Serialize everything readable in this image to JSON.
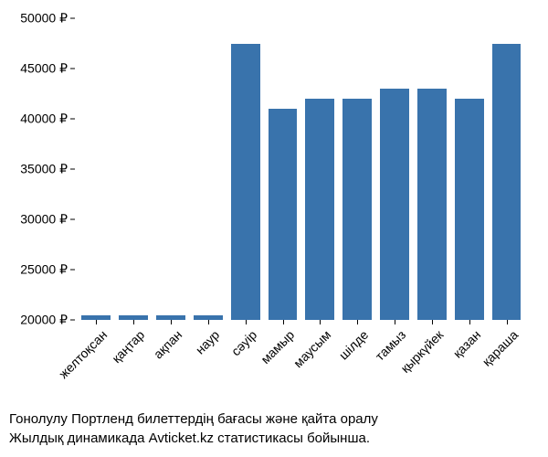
{
  "chart": {
    "type": "bar",
    "categories": [
      "желтоқсан",
      "қаңтар",
      "ақпан",
      "наур",
      "сәуір",
      "мамыр",
      "маусым",
      "шілде",
      "тамыз",
      "қыркүйек",
      "қазан",
      "қараша"
    ],
    "values": [
      20500,
      20500,
      20500,
      20500,
      47500,
      41000,
      42000,
      42000,
      43000,
      43000,
      42000,
      47500
    ],
    "bar_color": "#3973ac",
    "background_color": "#ffffff",
    "ylim": [
      20000,
      50000
    ],
    "ytick_step": 5000,
    "y_ticks": [
      20000,
      25000,
      30000,
      35000,
      40000,
      45000,
      50000
    ],
    "y_tick_labels": [
      "20000 ₽",
      "25000 ₽",
      "30000 ₽",
      "35000 ₽",
      "40000 ₽",
      "45000 ₽",
      "50000 ₽"
    ],
    "tick_fontsize": 14,
    "bar_width_ratio": 0.78,
    "x_label_rotation": -45
  },
  "caption": {
    "line1": "Гонолулу Портленд билеттердің бағасы және қайта оралу",
    "line2": "Жылдық динамикада Avticket.kz статистикасы бойынша."
  }
}
